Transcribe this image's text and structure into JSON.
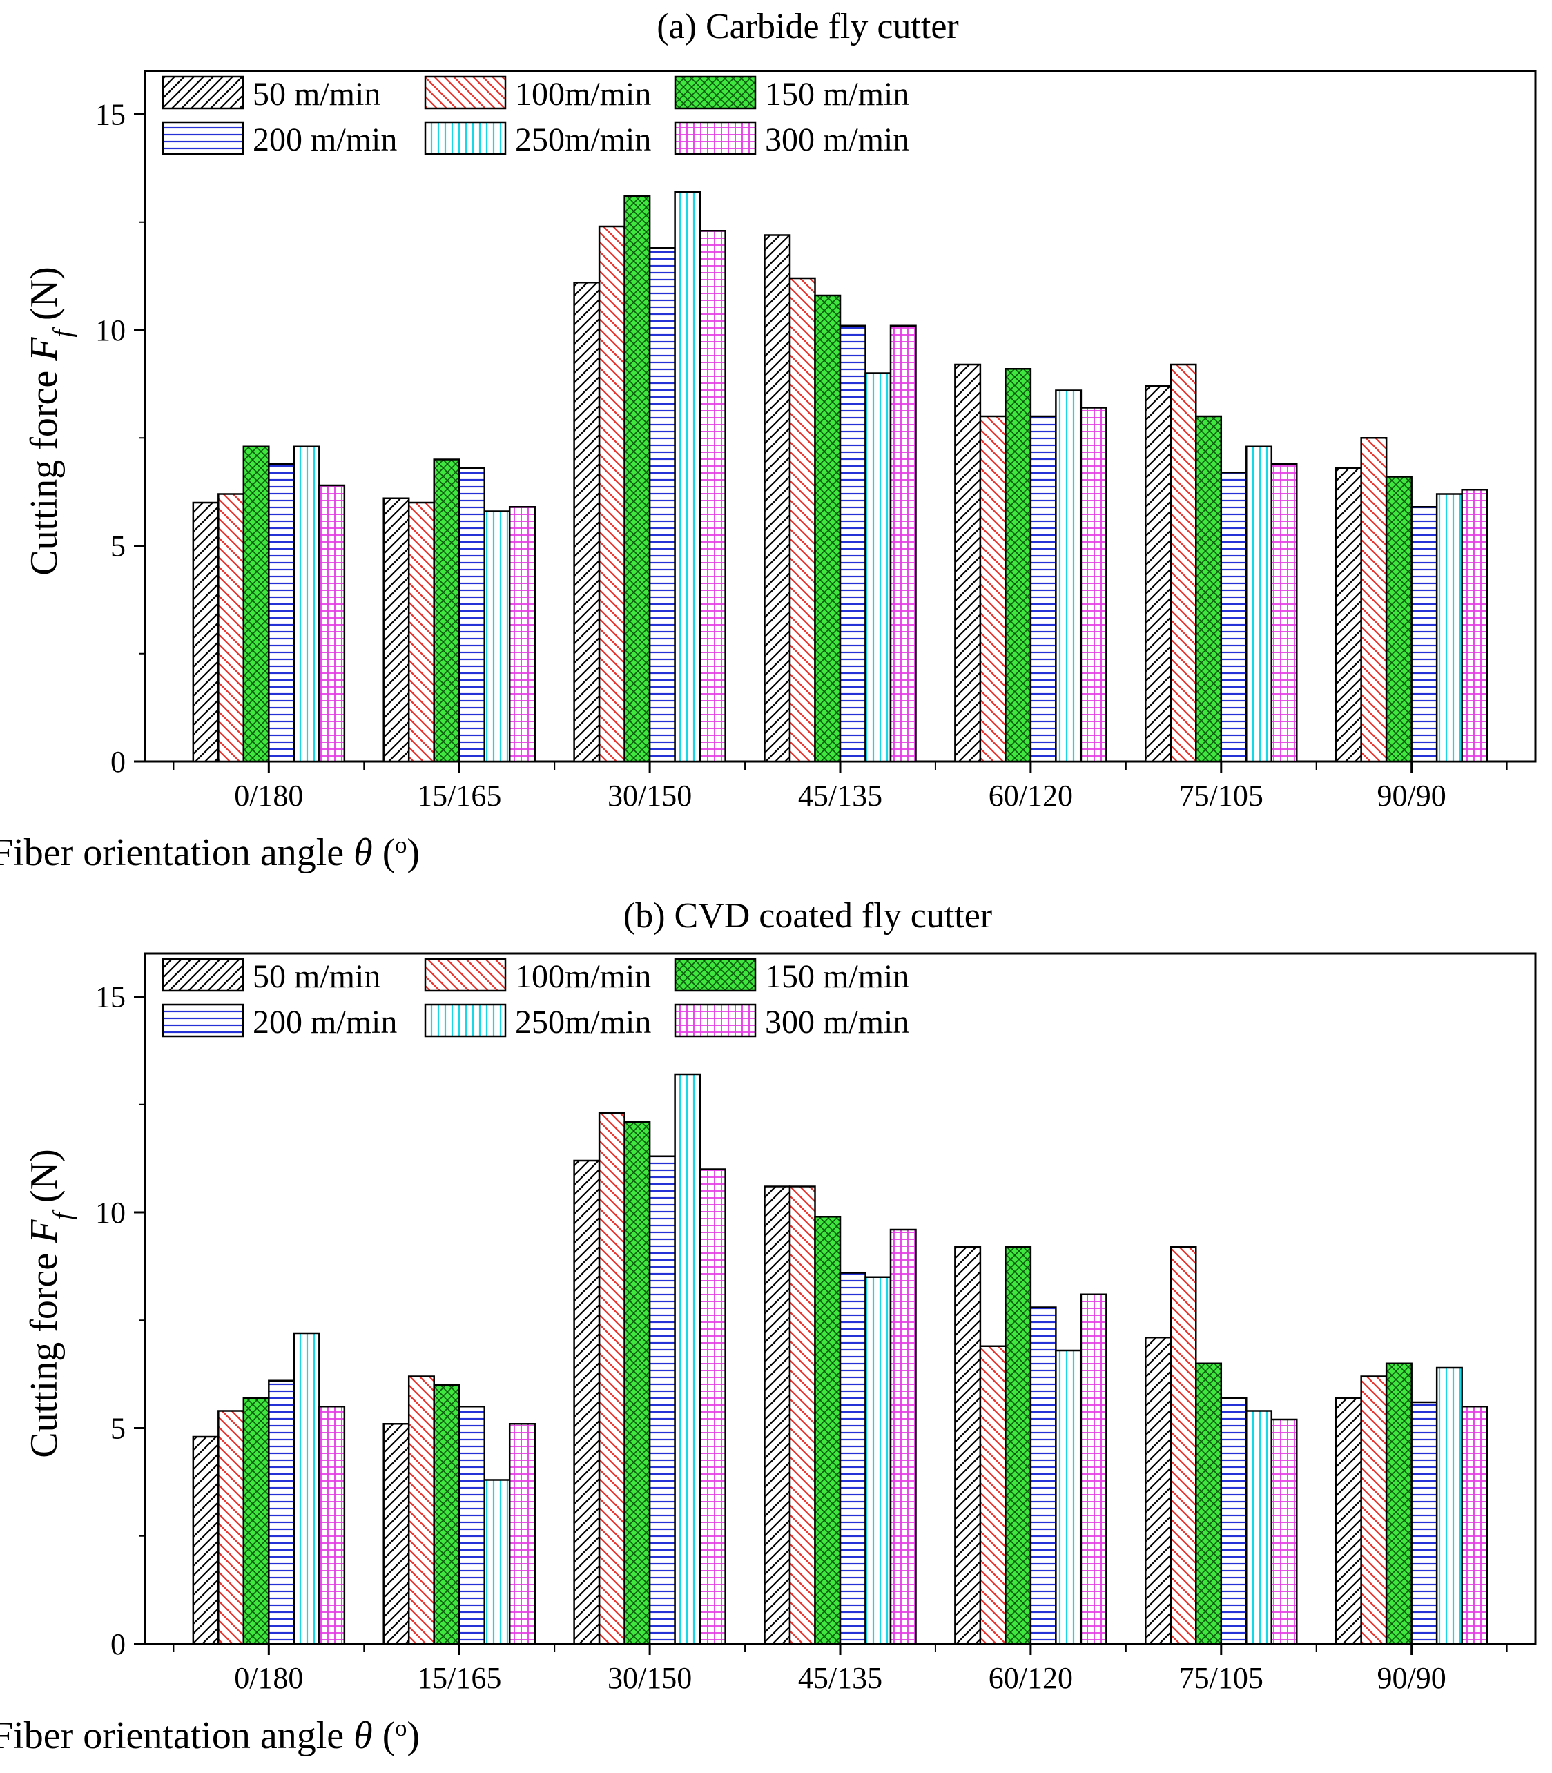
{
  "chart_data": [
    {
      "type": "bar",
      "title": "(a) Carbide fly cutter",
      "xlabel": "Fiber orientation angle θ (o)",
      "ylabel": "Cutting force Ff (N)",
      "ylim": [
        0,
        16
      ],
      "yticks": [
        0,
        5,
        10,
        15
      ],
      "legend_position": "top-left",
      "categories": [
        "0/180",
        "15/165",
        "30/150",
        "45/135",
        "60/120",
        "75/105",
        "90/90"
      ],
      "series": [
        {
          "name": "50 m/min",
          "values": [
            6.0,
            6.1,
            11.1,
            12.2,
            9.2,
            8.7,
            6.8
          ]
        },
        {
          "name": "100m/min",
          "values": [
            6.2,
            6.0,
            12.4,
            11.2,
            8.0,
            9.2,
            7.5
          ]
        },
        {
          "name": "150 m/min",
          "values": [
            7.3,
            7.0,
            13.1,
            10.8,
            9.1,
            8.0,
            6.6
          ]
        },
        {
          "name": "200 m/min",
          "values": [
            6.9,
            6.8,
            11.9,
            10.1,
            8.0,
            6.7,
            5.9
          ]
        },
        {
          "name": "250m/min",
          "values": [
            7.3,
            5.8,
            13.2,
            9.0,
            8.6,
            7.3,
            6.2
          ]
        },
        {
          "name": "300 m/min",
          "values": [
            6.4,
            5.9,
            12.3,
            10.1,
            8.2,
            6.9,
            6.3
          ]
        }
      ]
    },
    {
      "type": "bar",
      "title": "(b) CVD coated fly cutter",
      "xlabel": "Fiber orientation angle θ (o)",
      "ylabel": "Cutting force Ff (N)",
      "ylim": [
        0,
        16
      ],
      "yticks": [
        0,
        5,
        10,
        15
      ],
      "legend_position": "top-left",
      "categories": [
        "0/180",
        "15/165",
        "30/150",
        "45/135",
        "60/120",
        "75/105",
        "90/90"
      ],
      "series": [
        {
          "name": "50 m/min",
          "values": [
            4.8,
            5.1,
            11.2,
            10.6,
            9.2,
            7.1,
            5.7
          ]
        },
        {
          "name": "100m/min",
          "values": [
            5.4,
            6.2,
            12.3,
            10.6,
            6.9,
            9.2,
            6.2
          ]
        },
        {
          "name": "150 m/min",
          "values": [
            5.7,
            6.0,
            12.1,
            9.9,
            9.2,
            6.5,
            6.5
          ]
        },
        {
          "name": "200 m/min",
          "values": [
            6.1,
            5.5,
            11.3,
            8.6,
            7.8,
            5.7,
            5.6
          ]
        },
        {
          "name": "250m/min",
          "values": [
            7.2,
            3.8,
            13.2,
            8.5,
            6.8,
            5.4,
            6.4
          ]
        },
        {
          "name": "300 m/min",
          "values": [
            5.5,
            5.1,
            11.0,
            9.6,
            8.1,
            5.2,
            5.5
          ]
        }
      ]
    }
  ],
  "series_styles": [
    {
      "fill": "#ffffff",
      "stroke": "#000000",
      "pattern": "diag-right"
    },
    {
      "fill": "#ffffff",
      "stroke": "#e8312b",
      "pattern": "diag-left"
    },
    {
      "fill": "#3ee63e",
      "stroke": "#000000",
      "pattern": "crosshatch"
    },
    {
      "fill": "#ffffff",
      "stroke": "#2432d6",
      "pattern": "horizontal"
    },
    {
      "fill": "#ffffff",
      "stroke": "#18d8e8",
      "pattern": "vertical"
    },
    {
      "fill": "#ffffff",
      "stroke": "#e43ce4",
      "pattern": "grid"
    }
  ]
}
